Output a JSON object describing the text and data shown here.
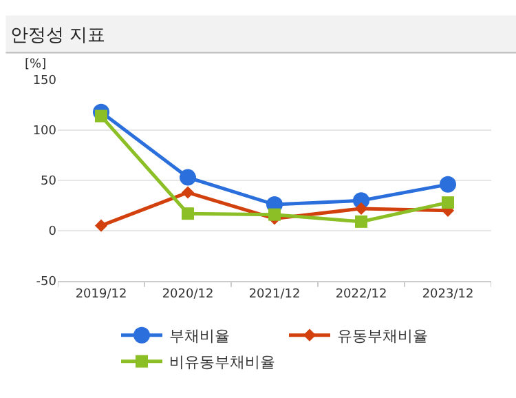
{
  "chart_data": {
    "type": "line",
    "title": "안정성 지표",
    "ylabel": "[%]",
    "categories": [
      "2019/12",
      "2020/12",
      "2021/12",
      "2022/12",
      "2023/12"
    ],
    "series": [
      {
        "name": "부채비율",
        "color": "#2a6fdb",
        "marker": "circle",
        "values": [
          118,
          53,
          26,
          30,
          46
        ]
      },
      {
        "name": "유동부채비율",
        "color": "#d2400e",
        "marker": "diamond",
        "values": [
          5,
          38,
          12,
          22,
          20
        ]
      },
      {
        "name": "비유동부채비율",
        "color": "#8cbf26",
        "marker": "square",
        "values": [
          114,
          17,
          16,
          9,
          28
        ]
      }
    ],
    "ylim": [
      -50,
      150
    ],
    "yticks": [
      -50,
      0,
      50,
      100,
      150
    ],
    "grid": "y",
    "legend": "bottom"
  }
}
